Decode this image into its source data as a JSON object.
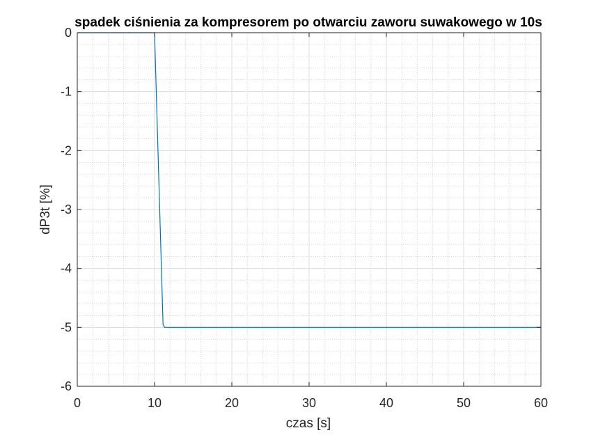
{
  "chart_data": {
    "type": "line",
    "title": "spadek ciśnienia za kompresorem po otwarciu zaworu suwakowego w 10s",
    "xlabel": "czas [s]",
    "ylabel": "dP3t [%]",
    "xlim": [
      0,
      60
    ],
    "ylim": [
      -6,
      0
    ],
    "x_ticks": [
      0,
      10,
      20,
      30,
      40,
      50,
      60
    ],
    "y_ticks": [
      0,
      -1,
      -2,
      -3,
      -4,
      -5,
      -6
    ],
    "x_tick_labels": [
      "0",
      "10",
      "20",
      "30",
      "40",
      "50",
      "60"
    ],
    "y_tick_labels": [
      "0",
      "-1",
      "-2",
      "-3",
      "-4",
      "-5",
      "-6"
    ],
    "grid": true,
    "minor_grid": true,
    "series": [
      {
        "color": "#0072bd",
        "x": [
          0,
          10,
          11.1,
          11.3,
          60
        ],
        "y": [
          0,
          0,
          -4.95,
          -5,
          -5
        ]
      }
    ]
  }
}
